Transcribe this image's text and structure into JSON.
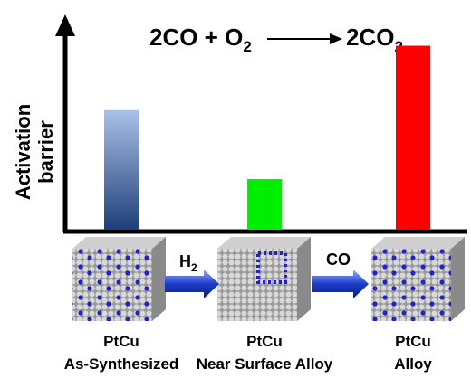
{
  "chart_data": {
    "type": "bar",
    "title": {
      "left": "2CO + O",
      "left_sub": "2",
      "right": "2CO",
      "right_sub": "2"
    },
    "y_label": [
      "Activation",
      "barrier"
    ],
    "categories": [
      [
        "PtCu",
        "As-Synthesized"
      ],
      [
        "PtCu",
        "Near Surface Alloy"
      ],
      [
        "PtCu",
        "Alloy"
      ]
    ],
    "values": [
      130,
      55,
      200
    ],
    "colors": [
      "#2f5597",
      "#00ee00",
      "#ff0000"
    ],
    "ylim": [
      0,
      230
    ],
    "steps": [
      {
        "text": "H",
        "sub": "2"
      },
      {
        "text": "CO"
      }
    ]
  }
}
